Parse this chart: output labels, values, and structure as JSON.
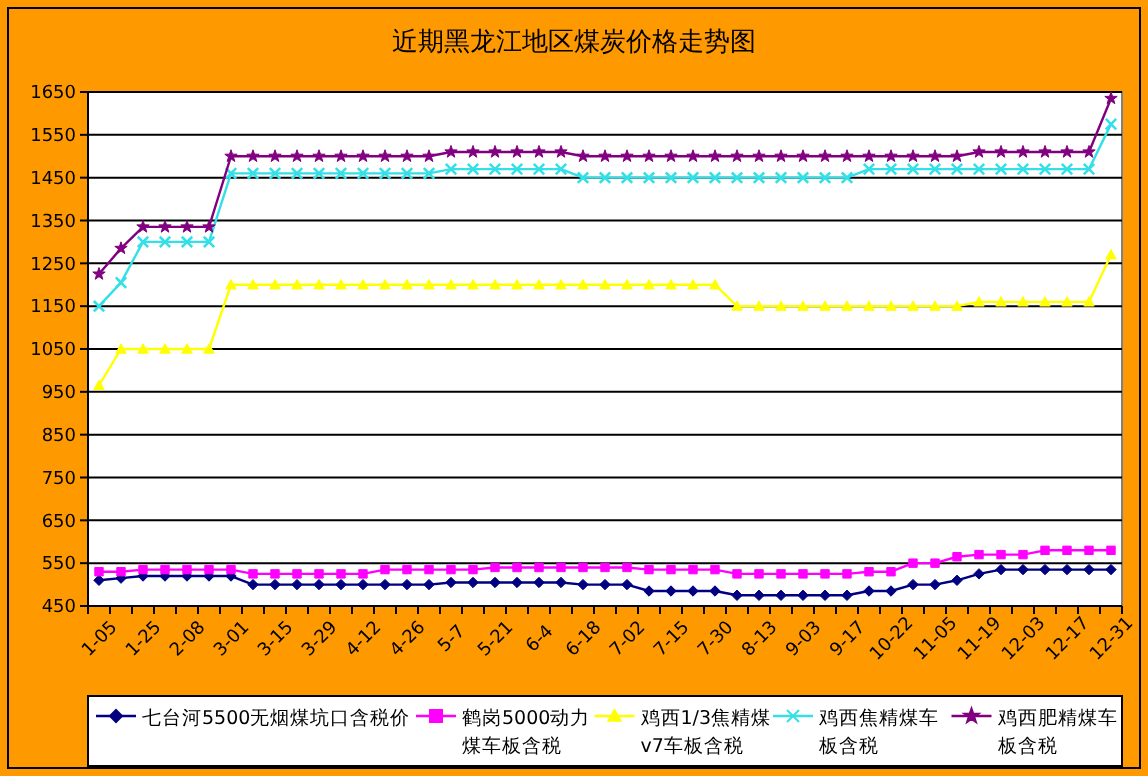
{
  "chart_data": {
    "type": "line",
    "title": "近期黑龙江地区煤炭价格走势图",
    "categories": [
      "1-05",
      null,
      "1-25",
      null,
      "2-08",
      null,
      "3-01",
      null,
      "3-15",
      null,
      "3-29",
      null,
      "4-12",
      null,
      "4-26",
      null,
      "5-7",
      null,
      "5-21",
      null,
      "6-4",
      null,
      "6-18",
      null,
      "7-02",
      null,
      "7-15",
      null,
      "7-30",
      null,
      "8-13",
      null,
      "9-03",
      null,
      "9-17",
      null,
      "10-22",
      null,
      "11-05",
      null,
      "11-19",
      null,
      "12-03",
      null,
      "12-17",
      null,
      "12-31"
    ],
    "series": [
      {
        "name": "七台河5500无烟煤坑口含税价",
        "color": "#000080",
        "marker": "diamond",
        "values": [
          510,
          515,
          520,
          520,
          520,
          520,
          520,
          500,
          500,
          500,
          500,
          500,
          500,
          500,
          500,
          500,
          505,
          505,
          505,
          505,
          505,
          505,
          500,
          500,
          500,
          485,
          485,
          485,
          485,
          475,
          475,
          475,
          475,
          475,
          475,
          485,
          485,
          500,
          500,
          510,
          525,
          535,
          535,
          535,
          535,
          535,
          535
        ]
      },
      {
        "name": "鹤岗5000动力煤车板含税",
        "color": "#ff00ff",
        "marker": "square",
        "values": [
          530,
          530,
          535,
          535,
          535,
          535,
          535,
          525,
          525,
          525,
          525,
          525,
          525,
          535,
          535,
          535,
          535,
          535,
          540,
          540,
          540,
          540,
          540,
          540,
          540,
          535,
          535,
          535,
          535,
          525,
          525,
          525,
          525,
          525,
          525,
          530,
          530,
          550,
          550,
          565,
          570,
          570,
          570,
          580,
          580,
          580,
          580
        ]
      },
      {
        "name": "鸡西1/3焦精煤v7车板含税",
        "color": "#ffff00",
        "marker": "triangle",
        "values": [
          965,
          1050,
          1050,
          1050,
          1050,
          1050,
          1200,
          1200,
          1200,
          1200,
          1200,
          1200,
          1200,
          1200,
          1200,
          1200,
          1200,
          1200,
          1200,
          1200,
          1200,
          1200,
          1200,
          1200,
          1200,
          1200,
          1200,
          1200,
          1200,
          1150,
          1150,
          1150,
          1150,
          1150,
          1150,
          1150,
          1150,
          1150,
          1150,
          1150,
          1160,
          1160,
          1160,
          1160,
          1160,
          1160,
          1270
        ]
      },
      {
        "name": "鸡西焦精煤车板含税",
        "color": "#33e0e8",
        "marker": "cross",
        "values": [
          1150,
          1205,
          1300,
          1300,
          1300,
          1300,
          1460,
          1460,
          1460,
          1460,
          1460,
          1460,
          1460,
          1460,
          1460,
          1460,
          1470,
          1470,
          1470,
          1470,
          1470,
          1470,
          1450,
          1450,
          1450,
          1450,
          1450,
          1450,
          1450,
          1450,
          1450,
          1450,
          1450,
          1450,
          1450,
          1470,
          1470,
          1470,
          1470,
          1470,
          1470,
          1470,
          1470,
          1470,
          1470,
          1470,
          1575
        ]
      },
      {
        "name": "鸡西肥精煤车板含税",
        "color": "#800080",
        "marker": "star",
        "values": [
          1225,
          1285,
          1335,
          1335,
          1335,
          1335,
          1500,
          1500,
          1500,
          1500,
          1500,
          1500,
          1500,
          1500,
          1500,
          1500,
          1510,
          1510,
          1510,
          1510,
          1510,
          1510,
          1500,
          1500,
          1500,
          1500,
          1500,
          1500,
          1500,
          1500,
          1500,
          1500,
          1500,
          1500,
          1500,
          1500,
          1500,
          1500,
          1500,
          1500,
          1510,
          1510,
          1510,
          1510,
          1510,
          1510,
          1635
        ]
      }
    ],
    "ylim": [
      450,
      1650
    ],
    "yticks": [
      450,
      550,
      650,
      750,
      850,
      950,
      1050,
      1150,
      1250,
      1350,
      1450,
      1550,
      1650
    ],
    "grid": "y",
    "legend": "bottom"
  }
}
